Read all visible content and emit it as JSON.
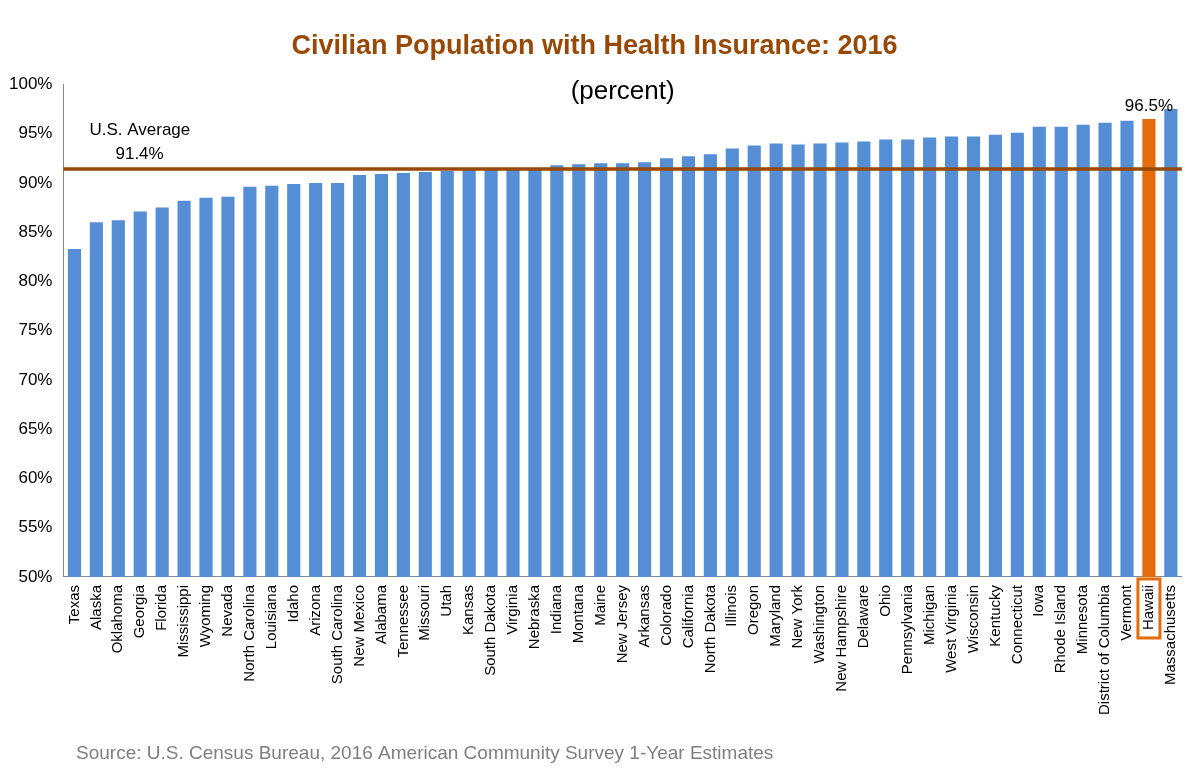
{
  "chart_data": {
    "type": "bar",
    "title": "Civilian Population with Health Insurance: 2016",
    "subtitle": "(percent)",
    "source": "Source: U.S. Census Bureau, 2016 American Community Survey 1-Year Estimates",
    "categories": [
      "Texas",
      "Alaska",
      "Oklahoma",
      "Georgia",
      "Florida",
      "Mississippi",
      "Wyoming",
      "Nevada",
      "North Carolina",
      "Louisiana",
      "Idaho",
      "Arizona",
      "South Carolina",
      "New Mexico",
      "Alabama",
      "Tennessee",
      "Missouri",
      "Utah",
      "Kansas",
      "South Dakota",
      "Virginia",
      "Nebraska",
      "Indiana",
      "Montana",
      "Maine",
      "New Jersey",
      "Arkansas",
      "Colorado",
      "California",
      "North Dakota",
      "Illinois",
      "Oregon",
      "Maryland",
      "New York",
      "Washington",
      "New Hampshire",
      "Delaware",
      "Ohio",
      "Pennsylvania",
      "Michigan",
      "West Virginia",
      "Wisconsin",
      "Kentucky",
      "Connecticut",
      "Iowa",
      "Rhode Island",
      "Minnesota",
      "District of Columbia",
      "Vermont",
      "Hawaii",
      "Massachusetts"
    ],
    "values": [
      83.3,
      86.0,
      86.2,
      87.1,
      87.5,
      88.2,
      88.5,
      88.6,
      89.6,
      89.7,
      89.9,
      90.0,
      90.0,
      90.8,
      90.9,
      91.0,
      91.1,
      91.2,
      91.3,
      91.3,
      91.3,
      91.4,
      91.8,
      91.9,
      92.0,
      92.0,
      92.1,
      92.5,
      92.7,
      92.9,
      93.5,
      93.8,
      94.0,
      93.9,
      94.0,
      94.1,
      94.2,
      94.4,
      94.4,
      94.6,
      94.7,
      94.7,
      94.9,
      95.1,
      95.7,
      95.7,
      95.9,
      96.1,
      96.3,
      96.5,
      97.5
    ],
    "color": "#558ed5",
    "highlight": {
      "category": "Hawaii",
      "value_label": "96.5%",
      "color": "#e46c0a"
    },
    "reference_line": {
      "label": "U.S. Average",
      "value": 91.4,
      "value_label": "91.4%",
      "color": "#984807"
    },
    "ylim": [
      50,
      100
    ],
    "yticks": [
      {
        "value": 50,
        "label": "50%"
      },
      {
        "value": 55,
        "label": "55%"
      },
      {
        "value": 60,
        "label": "60%"
      },
      {
        "value": 65,
        "label": "65%"
      },
      {
        "value": 70,
        "label": "70%"
      },
      {
        "value": 75,
        "label": "75%"
      },
      {
        "value": 80,
        "label": "80%"
      },
      {
        "value": 85,
        "label": "85%"
      },
      {
        "value": 90,
        "label": "90%"
      },
      {
        "value": 95,
        "label": "95%"
      },
      {
        "value": 100,
        "label": "100%"
      }
    ],
    "grid": false
  }
}
